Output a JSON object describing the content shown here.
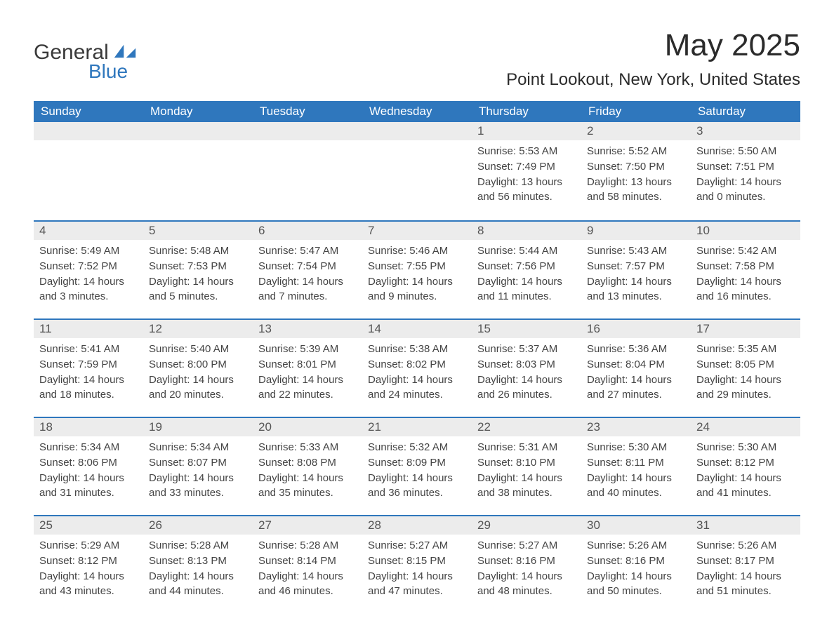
{
  "logo": {
    "text1": "General",
    "text2": "Blue"
  },
  "title": "May 2025",
  "location": "Point Lookout, New York, United States",
  "colors": {
    "header_bg": "#2f77bd",
    "header_text": "#ffffff",
    "daynum_bg": "#ececec",
    "daynum_text": "#555555",
    "body_text": "#444444",
    "divider": "#2f77bd",
    "page_bg": "#ffffff",
    "logo_blue": "#2f77bd",
    "logo_grey": "#3a3a3a"
  },
  "typography": {
    "title_fontsize": 44,
    "location_fontsize": 24,
    "weekday_fontsize": 17,
    "daynum_fontsize": 17,
    "content_fontsize": 15
  },
  "weekdays": [
    "Sunday",
    "Monday",
    "Tuesday",
    "Wednesday",
    "Thursday",
    "Friday",
    "Saturday"
  ],
  "weeks": [
    [
      {
        "day": "",
        "sunrise": "",
        "sunset": "",
        "daylight": ""
      },
      {
        "day": "",
        "sunrise": "",
        "sunset": "",
        "daylight": ""
      },
      {
        "day": "",
        "sunrise": "",
        "sunset": "",
        "daylight": ""
      },
      {
        "day": "",
        "sunrise": "",
        "sunset": "",
        "daylight": ""
      },
      {
        "day": "1",
        "sunrise": "Sunrise: 5:53 AM",
        "sunset": "Sunset: 7:49 PM",
        "daylight": "Daylight: 13 hours and 56 minutes."
      },
      {
        "day": "2",
        "sunrise": "Sunrise: 5:52 AM",
        "sunset": "Sunset: 7:50 PM",
        "daylight": "Daylight: 13 hours and 58 minutes."
      },
      {
        "day": "3",
        "sunrise": "Sunrise: 5:50 AM",
        "sunset": "Sunset: 7:51 PM",
        "daylight": "Daylight: 14 hours and 0 minutes."
      }
    ],
    [
      {
        "day": "4",
        "sunrise": "Sunrise: 5:49 AM",
        "sunset": "Sunset: 7:52 PM",
        "daylight": "Daylight: 14 hours and 3 minutes."
      },
      {
        "day": "5",
        "sunrise": "Sunrise: 5:48 AM",
        "sunset": "Sunset: 7:53 PM",
        "daylight": "Daylight: 14 hours and 5 minutes."
      },
      {
        "day": "6",
        "sunrise": "Sunrise: 5:47 AM",
        "sunset": "Sunset: 7:54 PM",
        "daylight": "Daylight: 14 hours and 7 minutes."
      },
      {
        "day": "7",
        "sunrise": "Sunrise: 5:46 AM",
        "sunset": "Sunset: 7:55 PM",
        "daylight": "Daylight: 14 hours and 9 minutes."
      },
      {
        "day": "8",
        "sunrise": "Sunrise: 5:44 AM",
        "sunset": "Sunset: 7:56 PM",
        "daylight": "Daylight: 14 hours and 11 minutes."
      },
      {
        "day": "9",
        "sunrise": "Sunrise: 5:43 AM",
        "sunset": "Sunset: 7:57 PM",
        "daylight": "Daylight: 14 hours and 13 minutes."
      },
      {
        "day": "10",
        "sunrise": "Sunrise: 5:42 AM",
        "sunset": "Sunset: 7:58 PM",
        "daylight": "Daylight: 14 hours and 16 minutes."
      }
    ],
    [
      {
        "day": "11",
        "sunrise": "Sunrise: 5:41 AM",
        "sunset": "Sunset: 7:59 PM",
        "daylight": "Daylight: 14 hours and 18 minutes."
      },
      {
        "day": "12",
        "sunrise": "Sunrise: 5:40 AM",
        "sunset": "Sunset: 8:00 PM",
        "daylight": "Daylight: 14 hours and 20 minutes."
      },
      {
        "day": "13",
        "sunrise": "Sunrise: 5:39 AM",
        "sunset": "Sunset: 8:01 PM",
        "daylight": "Daylight: 14 hours and 22 minutes."
      },
      {
        "day": "14",
        "sunrise": "Sunrise: 5:38 AM",
        "sunset": "Sunset: 8:02 PM",
        "daylight": "Daylight: 14 hours and 24 minutes."
      },
      {
        "day": "15",
        "sunrise": "Sunrise: 5:37 AM",
        "sunset": "Sunset: 8:03 PM",
        "daylight": "Daylight: 14 hours and 26 minutes."
      },
      {
        "day": "16",
        "sunrise": "Sunrise: 5:36 AM",
        "sunset": "Sunset: 8:04 PM",
        "daylight": "Daylight: 14 hours and 27 minutes."
      },
      {
        "day": "17",
        "sunrise": "Sunrise: 5:35 AM",
        "sunset": "Sunset: 8:05 PM",
        "daylight": "Daylight: 14 hours and 29 minutes."
      }
    ],
    [
      {
        "day": "18",
        "sunrise": "Sunrise: 5:34 AM",
        "sunset": "Sunset: 8:06 PM",
        "daylight": "Daylight: 14 hours and 31 minutes."
      },
      {
        "day": "19",
        "sunrise": "Sunrise: 5:34 AM",
        "sunset": "Sunset: 8:07 PM",
        "daylight": "Daylight: 14 hours and 33 minutes."
      },
      {
        "day": "20",
        "sunrise": "Sunrise: 5:33 AM",
        "sunset": "Sunset: 8:08 PM",
        "daylight": "Daylight: 14 hours and 35 minutes."
      },
      {
        "day": "21",
        "sunrise": "Sunrise: 5:32 AM",
        "sunset": "Sunset: 8:09 PM",
        "daylight": "Daylight: 14 hours and 36 minutes."
      },
      {
        "day": "22",
        "sunrise": "Sunrise: 5:31 AM",
        "sunset": "Sunset: 8:10 PM",
        "daylight": "Daylight: 14 hours and 38 minutes."
      },
      {
        "day": "23",
        "sunrise": "Sunrise: 5:30 AM",
        "sunset": "Sunset: 8:11 PM",
        "daylight": "Daylight: 14 hours and 40 minutes."
      },
      {
        "day": "24",
        "sunrise": "Sunrise: 5:30 AM",
        "sunset": "Sunset: 8:12 PM",
        "daylight": "Daylight: 14 hours and 41 minutes."
      }
    ],
    [
      {
        "day": "25",
        "sunrise": "Sunrise: 5:29 AM",
        "sunset": "Sunset: 8:12 PM",
        "daylight": "Daylight: 14 hours and 43 minutes."
      },
      {
        "day": "26",
        "sunrise": "Sunrise: 5:28 AM",
        "sunset": "Sunset: 8:13 PM",
        "daylight": "Daylight: 14 hours and 44 minutes."
      },
      {
        "day": "27",
        "sunrise": "Sunrise: 5:28 AM",
        "sunset": "Sunset: 8:14 PM",
        "daylight": "Daylight: 14 hours and 46 minutes."
      },
      {
        "day": "28",
        "sunrise": "Sunrise: 5:27 AM",
        "sunset": "Sunset: 8:15 PM",
        "daylight": "Daylight: 14 hours and 47 minutes."
      },
      {
        "day": "29",
        "sunrise": "Sunrise: 5:27 AM",
        "sunset": "Sunset: 8:16 PM",
        "daylight": "Daylight: 14 hours and 48 minutes."
      },
      {
        "day": "30",
        "sunrise": "Sunrise: 5:26 AM",
        "sunset": "Sunset: 8:16 PM",
        "daylight": "Daylight: 14 hours and 50 minutes."
      },
      {
        "day": "31",
        "sunrise": "Sunrise: 5:26 AM",
        "sunset": "Sunset: 8:17 PM",
        "daylight": "Daylight: 14 hours and 51 minutes."
      }
    ]
  ]
}
